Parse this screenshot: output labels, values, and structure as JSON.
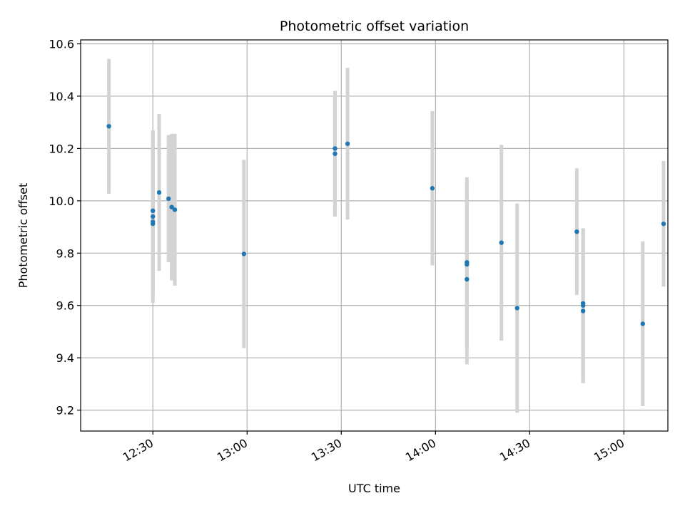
{
  "chart_data": {
    "type": "scatter",
    "title": "Photometric offset variation",
    "xlabel": "UTC time",
    "ylabel": "Photometric offset",
    "x_ticks": [
      "12:30",
      "13:00",
      "13:30",
      "14:00",
      "14:30",
      "15:00"
    ],
    "y_ticks": [
      "9.2",
      "9.4",
      "9.6",
      "9.8",
      "10.0",
      "10.2",
      "10.4",
      "10.6"
    ],
    "xlim": [
      "12:07",
      "15:14"
    ],
    "ylim": [
      9.12,
      10.615
    ],
    "grid": true,
    "colors": {
      "point": "#1f77b4",
      "errorbar": "#d3d3d3",
      "grid": "#b0b0b0"
    },
    "points": [
      {
        "x": "12:16",
        "y": 10.285,
        "err": 0.258
      },
      {
        "x": "12:30",
        "y": 9.912,
        "err": 0.28
      },
      {
        "x": "12:30",
        "y": 9.92,
        "err": 0.29
      },
      {
        "x": "12:30",
        "y": 9.94,
        "err": 0.33
      },
      {
        "x": "12:30",
        "y": 9.962,
        "err": 0.3
      },
      {
        "x": "12:32",
        "y": 10.032,
        "err": 0.3
      },
      {
        "x": "12:35",
        "y": 10.008,
        "err": 0.243
      },
      {
        "x": "12:36",
        "y": 9.976,
        "err": 0.28
      },
      {
        "x": "12:37",
        "y": 9.966,
        "err": 0.29
      },
      {
        "x": "12:59",
        "y": 9.797,
        "err": 0.36
      },
      {
        "x": "13:28",
        "y": 10.18,
        "err": 0.24
      },
      {
        "x": "13:28",
        "y": 10.2,
        "err": 0.22
      },
      {
        "x": "13:32",
        "y": 10.218,
        "err": 0.29
      },
      {
        "x": "13:59",
        "y": 10.048,
        "err": 0.295
      },
      {
        "x": "14:10",
        "y": 9.7,
        "err": 0.325
      },
      {
        "x": "14:10",
        "y": 9.765,
        "err": 0.325
      },
      {
        "x": "14:10",
        "y": 9.757,
        "err": 0.32
      },
      {
        "x": "14:21",
        "y": 9.84,
        "err": 0.374
      },
      {
        "x": "14:26",
        "y": 9.59,
        "err": 0.4
      },
      {
        "x": "14:45",
        "y": 9.882,
        "err": 0.242
      },
      {
        "x": "14:47",
        "y": 9.608,
        "err": 0.282
      },
      {
        "x": "14:47",
        "y": 9.6,
        "err": 0.295
      },
      {
        "x": "14:47",
        "y": 9.579,
        "err": 0.276
      },
      {
        "x": "15:06",
        "y": 9.53,
        "err": 0.315
      },
      {
        "x": "15:19",
        "y": 9.912,
        "err": 0.24
      }
    ]
  }
}
